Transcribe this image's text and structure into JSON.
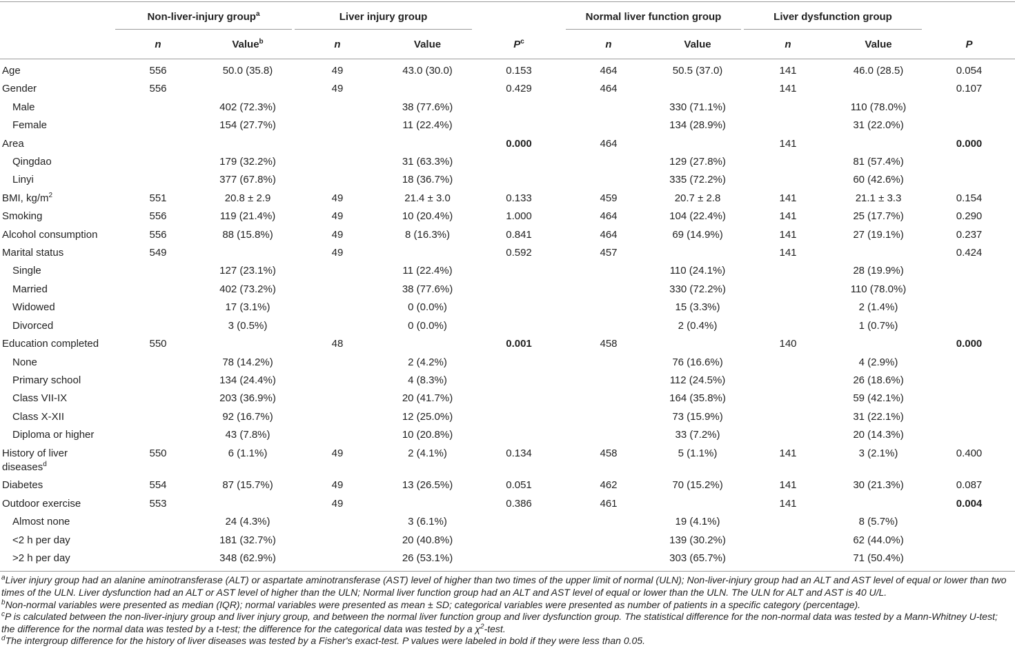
{
  "header": {
    "groups": [
      {
        "label": "Non-liver-injury group",
        "sup": "a"
      },
      {
        "label": "Liver injury group"
      },
      {
        "label": "Normal liver function group"
      },
      {
        "label": "Liver dysfunction group"
      }
    ],
    "columns": [
      {
        "label": "n",
        "italic": true
      },
      {
        "label": "Value",
        "sup": "b"
      },
      {
        "label": "n",
        "italic": true
      },
      {
        "label": "Value"
      },
      {
        "label": "P",
        "italic": true,
        "sup": "c"
      },
      {
        "label": "n",
        "italic": true
      },
      {
        "label": "Value"
      },
      {
        "label": "n",
        "italic": true
      },
      {
        "label": "Value"
      },
      {
        "label": "P",
        "italic": true
      }
    ]
  },
  "table": {
    "rows": [
      {
        "label": "Age",
        "cells": [
          "556",
          "50.0 (35.8)",
          "49",
          "43.0 (30.0)",
          "0.153",
          "464",
          "50.5 (37.0)",
          "141",
          "46.0 (28.5)",
          "0.054"
        ]
      },
      {
        "label": "Gender",
        "cells": [
          "556",
          null,
          "49",
          null,
          "0.429",
          "464",
          null,
          "141",
          null,
          "0.107"
        ]
      },
      {
        "label": "Male",
        "indent": true,
        "cells": [
          null,
          "402 (72.3%)",
          null,
          "38 (77.6%)",
          null,
          null,
          "330 (71.1%)",
          null,
          "110 (78.0%)",
          null
        ]
      },
      {
        "label": "Female",
        "indent": true,
        "cells": [
          null,
          "154 (27.7%)",
          null,
          "11 (22.4%)",
          null,
          null,
          "134 (28.9%)",
          null,
          "31 (22.0%)",
          null
        ]
      },
      {
        "label": "Area",
        "cells": [
          null,
          null,
          null,
          null,
          "0.000",
          "464",
          null,
          "141",
          null,
          "0.000"
        ],
        "bold_cells": [
          4,
          9
        ]
      },
      {
        "label": "Qingdao",
        "indent": true,
        "cells": [
          null,
          "179 (32.2%)",
          null,
          "31 (63.3%)",
          null,
          null,
          "129 (27.8%)",
          null,
          "81 (57.4%)",
          null
        ]
      },
      {
        "label": "Linyi",
        "indent": true,
        "cells": [
          null,
          "377 (67.8%)",
          null,
          "18 (36.7%)",
          null,
          null,
          "335 (72.2%)",
          null,
          "60 (42.6%)",
          null
        ]
      },
      {
        "label": "BMI, kg/m",
        "label_sup": "2",
        "cells": [
          "551",
          "20.8 ± 2.9",
          "49",
          "21.4 ± 3.0",
          "0.133",
          "459",
          "20.7 ± 2.8",
          "141",
          "21.1 ± 3.3",
          "0.154"
        ]
      },
      {
        "label": "Smoking",
        "cells": [
          "556",
          "119 (21.4%)",
          "49",
          "10 (20.4%)",
          "1.000",
          "464",
          "104 (22.4%)",
          "141",
          "25 (17.7%)",
          "0.290"
        ]
      },
      {
        "label": "Alcohol consumption",
        "cells": [
          "556",
          "88 (15.8%)",
          "49",
          "8 (16.3%)",
          "0.841",
          "464",
          "69 (14.9%)",
          "141",
          "27 (19.1%)",
          "0.237"
        ]
      },
      {
        "label": "Marital status",
        "cells": [
          "549",
          null,
          "49",
          null,
          "0.592",
          "457",
          null,
          "141",
          null,
          "0.424"
        ]
      },
      {
        "label": "Single",
        "indent": true,
        "cells": [
          null,
          "127 (23.1%)",
          null,
          "11 (22.4%)",
          null,
          null,
          "110 (24.1%)",
          null,
          "28 (19.9%)",
          null
        ]
      },
      {
        "label": "Married",
        "indent": true,
        "cells": [
          null,
          "402 (73.2%)",
          null,
          "38 (77.6%)",
          null,
          null,
          "330 (72.2%)",
          null,
          "110 (78.0%)",
          null
        ]
      },
      {
        "label": "Widowed",
        "indent": true,
        "cells": [
          null,
          "17 (3.1%)",
          null,
          "0 (0.0%)",
          null,
          null,
          "15 (3.3%)",
          null,
          "2 (1.4%)",
          null
        ]
      },
      {
        "label": "Divorced",
        "indent": true,
        "cells": [
          null,
          "3 (0.5%)",
          null,
          "0 (0.0%)",
          null,
          null,
          "2 (0.4%)",
          null,
          "1 (0.7%)",
          null
        ]
      },
      {
        "label": "Education completed",
        "cells": [
          "550",
          null,
          "48",
          null,
          "0.001",
          "458",
          null,
          "140",
          null,
          "0.000"
        ],
        "bold_cells": [
          4,
          9
        ]
      },
      {
        "label": "None",
        "indent": true,
        "cells": [
          null,
          "78 (14.2%)",
          null,
          "2 (4.2%)",
          null,
          null,
          "76 (16.6%)",
          null,
          "4 (2.9%)",
          null
        ]
      },
      {
        "label": "Primary school",
        "indent": true,
        "cells": [
          null,
          "134 (24.4%)",
          null,
          "4 (8.3%)",
          null,
          null,
          "112 (24.5%)",
          null,
          "26 (18.6%)",
          null
        ]
      },
      {
        "label": "Class VII-IX",
        "indent": true,
        "cells": [
          null,
          "203 (36.9%)",
          null,
          "20 (41.7%)",
          null,
          null,
          "164 (35.8%)",
          null,
          "59 (42.1%)",
          null
        ]
      },
      {
        "label": "Class X-XII",
        "indent": true,
        "cells": [
          null,
          "92 (16.7%)",
          null,
          "12 (25.0%)",
          null,
          null,
          "73 (15.9%)",
          null,
          "31 (22.1%)",
          null
        ]
      },
      {
        "label": "Diploma or higher",
        "indent": true,
        "cells": [
          null,
          "43 (7.8%)",
          null,
          "10 (20.8%)",
          null,
          null,
          "33 (7.2%)",
          null,
          "20 (14.3%)",
          null
        ]
      },
      {
        "label": "History of liver diseases",
        "label_sup": "d",
        "cells": [
          "550",
          "6 (1.1%)",
          "49",
          "2 (4.1%)",
          "0.134",
          "458",
          "5 (1.1%)",
          "141",
          "3 (2.1%)",
          "0.400"
        ]
      },
      {
        "label": "Diabetes",
        "cells": [
          "554",
          "87 (15.7%)",
          "49",
          "13 (26.5%)",
          "0.051",
          "462",
          "70 (15.2%)",
          "141",
          "30 (21.3%)",
          "0.087"
        ]
      },
      {
        "label": "Outdoor exercise",
        "cells": [
          "553",
          null,
          "49",
          null,
          "0.386",
          "461",
          null,
          "141",
          null,
          "0.004"
        ],
        "bold_cells": [
          9
        ]
      },
      {
        "label": "Almost none",
        "indent": true,
        "cells": [
          null,
          "24 (4.3%)",
          null,
          "3 (6.1%)",
          null,
          null,
          "19 (4.1%)",
          null,
          "8 (5.7%)",
          null
        ]
      },
      {
        "label": "<2 h per day",
        "indent": true,
        "cells": [
          null,
          "181 (32.7%)",
          null,
          "20 (40.8%)",
          null,
          null,
          "139 (30.2%)",
          null,
          "62 (44.0%)",
          null
        ]
      },
      {
        "label": ">2 h per day",
        "indent": true,
        "cells": [
          null,
          "348 (62.9%)",
          null,
          "26 (53.1%)",
          null,
          null,
          "303 (65.7%)",
          null,
          "71 (50.4%)",
          null
        ]
      }
    ]
  },
  "footnotes": [
    {
      "mark": "a",
      "text": "Liver injury group had an alanine aminotransferase (ALT) or aspartate aminotransferase (AST) level of higher than two times of the upper limit of normal (ULN); Non-liver-injury group had an ALT and AST level of equal or lower than two times of the ULN. Liver dysfunction had an ALT or AST level of higher than the ULN; Normal liver function group had an ALT and AST level of equal or lower than the ULN. The ULN for ALT and AST is 40 U/L."
    },
    {
      "mark": "b",
      "text": "Non-normal variables were presented as median (IQR); normal variables were presented as mean ± SD; categorical variables were presented as number of patients in a specific category (percentage)."
    },
    {
      "mark": "c",
      "text": "P is calculated between the non-liver-injury group and liver injury group, and between the normal liver function group and liver dysfunction group. The statistical difference for the non-normal data was tested by a Mann-Whitney U-test; the difference for the normal data was tested by a t-test; the difference for the categorical data was tested by a χ",
      "sup": "2",
      "tail": "-test."
    },
    {
      "mark": "d",
      "text": "The intergroup difference for the history of liver diseases was tested by a Fisher's exact-test. P values were labeled in bold if they were less than 0.05."
    }
  ]
}
